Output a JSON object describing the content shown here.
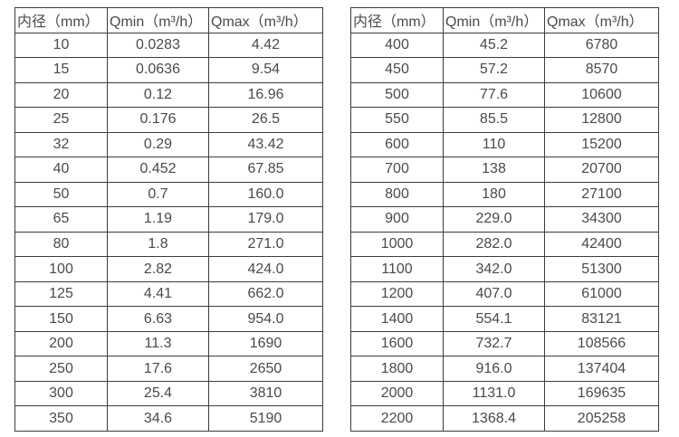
{
  "colors": {
    "border": "#3c3c3c",
    "text": "#4a4a4a",
    "background": "#ffffff"
  },
  "headers": {
    "diameter": "内径（mm）",
    "qmin": "Qmin（m³/h）",
    "qmax": "Qmax（m³/h）"
  },
  "tables": {
    "left": {
      "rows": [
        [
          "10",
          "0.0283",
          "4.42"
        ],
        [
          "15",
          "0.0636",
          "9.54"
        ],
        [
          "20",
          "0.12",
          "16.96"
        ],
        [
          "25",
          "0.176",
          "26.5"
        ],
        [
          "32",
          "0.29",
          "43.42"
        ],
        [
          "40",
          "0.452",
          "67.85"
        ],
        [
          "50",
          "0.7",
          "160.0"
        ],
        [
          "65",
          "1.19",
          "179.0"
        ],
        [
          "80",
          "1.8",
          "271.0"
        ],
        [
          "100",
          "2.82",
          "424.0"
        ],
        [
          "125",
          "4.41",
          "662.0"
        ],
        [
          "150",
          "6.63",
          "954.0"
        ],
        [
          "200",
          "11.3",
          "1690"
        ],
        [
          "250",
          "17.6",
          "2650"
        ],
        [
          "300",
          "25.4",
          "3810"
        ],
        [
          "350",
          "34.6",
          "5190"
        ]
      ]
    },
    "right": {
      "rows": [
        [
          "400",
          "45.2",
          "6780"
        ],
        [
          "450",
          "57.2",
          "8570"
        ],
        [
          "500",
          "77.6",
          "10600"
        ],
        [
          "550",
          "85.5",
          "12800"
        ],
        [
          "600",
          "110",
          "15200"
        ],
        [
          "700",
          "138",
          "20700"
        ],
        [
          "800",
          "180",
          "27100"
        ],
        [
          "900",
          "229.0",
          "34300"
        ],
        [
          "1000",
          "282.0",
          "42400"
        ],
        [
          "1100",
          "342.0",
          "51300"
        ],
        [
          "1200",
          "407.0",
          "61000"
        ],
        [
          "1400",
          "554.1",
          "83121"
        ],
        [
          "1600",
          "732.7",
          "108566"
        ],
        [
          "1800",
          "916.0",
          "137404"
        ],
        [
          "2000",
          "1131.0",
          "169635"
        ],
        [
          "2200",
          "1368.4",
          "205258"
        ]
      ]
    }
  }
}
